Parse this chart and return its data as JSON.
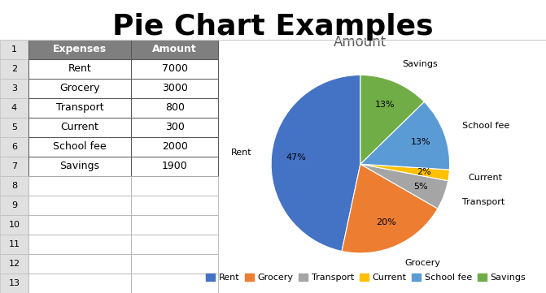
{
  "title": "Pie Chart Examples",
  "pie_title": "Amount",
  "categories": [
    "Rent",
    "Grocery",
    "Transport",
    "Current",
    "School fee",
    "Savings"
  ],
  "values": [
    7000,
    3000,
    800,
    300,
    2000,
    1900
  ],
  "colors": [
    "#4472C4",
    "#ED7D31",
    "#A5A5A5",
    "#FFC000",
    "#5B9BD5",
    "#70AD47"
  ],
  "table_headers": [
    "Expenses",
    "Amount"
  ],
  "table_data": [
    [
      "Rent",
      "7000"
    ],
    [
      "Grocery",
      "3000"
    ],
    [
      "Transport",
      "800"
    ],
    [
      "Current",
      "300"
    ],
    [
      "School fee",
      "2000"
    ],
    [
      "Savings",
      "1900"
    ]
  ],
  "header_bg": "#7F7F7F",
  "header_fg": "#FFFFFF",
  "title_fontsize": 26,
  "pie_title_fontsize": 12,
  "legend_fontsize": 8,
  "label_fontsize": 8,
  "pct_fontsize": 8,
  "table_fontsize": 9,
  "row_num_fontsize": 8
}
